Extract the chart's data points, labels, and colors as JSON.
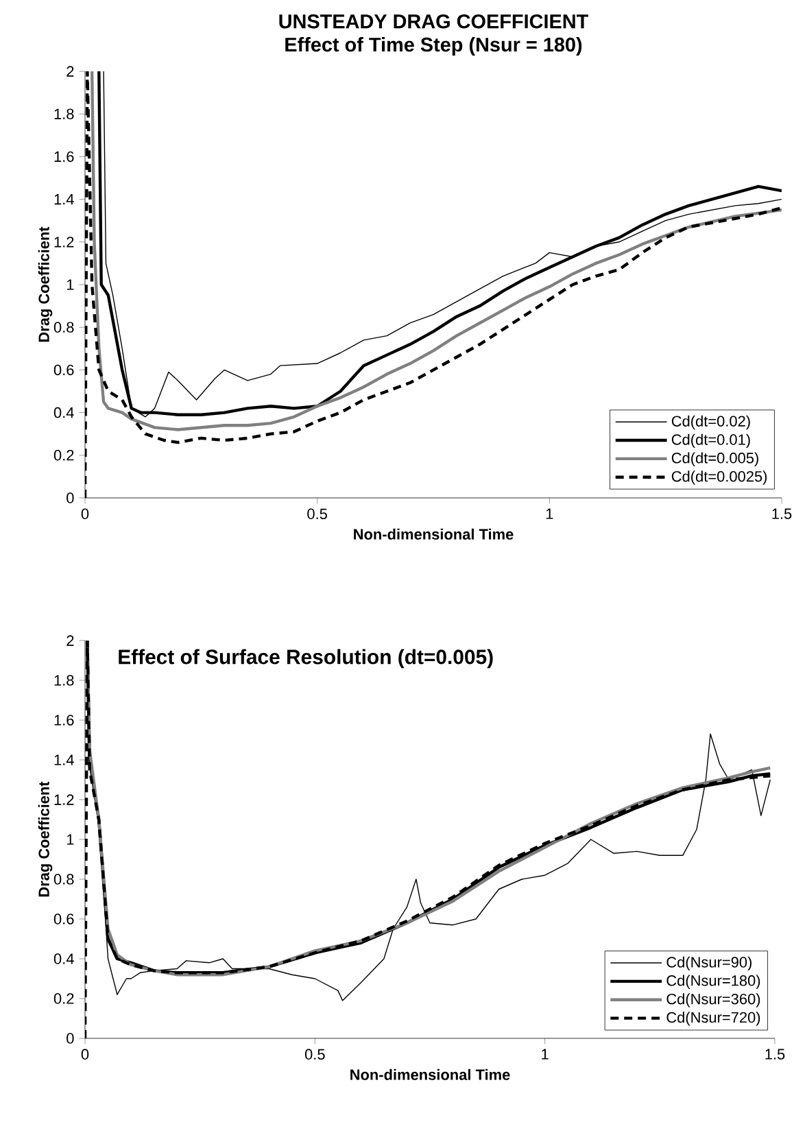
{
  "chart_data": [
    {
      "type": "line",
      "title": "UNSTEADY DRAG COEFFICIENT",
      "subtitle": "Effect of Time Step (Nsur = 180)",
      "xlabel": "Non-dimensional Time",
      "ylabel": "Drag Coefficient",
      "xlim": [
        0,
        1.5
      ],
      "ylim": [
        0,
        2
      ],
      "xticks": [
        0,
        0.5,
        1,
        1.5
      ],
      "yticks": [
        0,
        0.2,
        0.4,
        0.6,
        0.8,
        1,
        1.2,
        1.4,
        1.6,
        1.8,
        2
      ],
      "grid": false,
      "legend": "bottom right",
      "marker": "none",
      "series": [
        {
          "name": "Cd(dt=0.02)",
          "color": "#000000",
          "line_style": "solid",
          "x": [
            0.04,
            0.045,
            0.06,
            0.08,
            0.1,
            0.13,
            0.15,
            0.18,
            0.2,
            0.24,
            0.28,
            0.3,
            0.35,
            0.4,
            0.42,
            0.5,
            0.55,
            0.6,
            0.65,
            0.7,
            0.75,
            0.8,
            0.9,
            0.97,
            1.0,
            1.05,
            1.1,
            1.15,
            1.2,
            1.25,
            1.3,
            1.4,
            1.45,
            1.5
          ],
          "values": [
            2,
            1.1,
            0.95,
            0.7,
            0.42,
            0.38,
            0.42,
            0.59,
            0.55,
            0.46,
            0.56,
            0.6,
            0.55,
            0.58,
            0.62,
            0.63,
            0.68,
            0.74,
            0.76,
            0.82,
            0.86,
            0.92,
            1.04,
            1.1,
            1.15,
            1.13,
            1.18,
            1.2,
            1.25,
            1.3,
            1.33,
            1.37,
            1.38,
            1.4
          ]
        },
        {
          "name": "Cd(dt=0.01)",
          "color": "#000000",
          "line_style": "solid",
          "x": [
            0.03,
            0.035,
            0.05,
            0.08,
            0.1,
            0.12,
            0.15,
            0.2,
            0.25,
            0.3,
            0.35,
            0.4,
            0.45,
            0.5,
            0.55,
            0.6,
            0.65,
            0.7,
            0.75,
            0.8,
            0.85,
            0.9,
            0.95,
            1.0,
            1.05,
            1.1,
            1.15,
            1.2,
            1.25,
            1.3,
            1.35,
            1.4,
            1.45,
            1.5
          ],
          "values": [
            2,
            1.0,
            0.95,
            0.6,
            0.42,
            0.4,
            0.4,
            0.39,
            0.39,
            0.4,
            0.42,
            0.43,
            0.42,
            0.43,
            0.5,
            0.62,
            0.67,
            0.72,
            0.78,
            0.85,
            0.9,
            0.97,
            1.03,
            1.08,
            1.13,
            1.18,
            1.22,
            1.28,
            1.33,
            1.37,
            1.4,
            1.43,
            1.46,
            1.44
          ]
        },
        {
          "name": "Cd(dt=0.005)",
          "color": "#808080",
          "line_style": "solid",
          "x": [
            0.015,
            0.02,
            0.03,
            0.04,
            0.05,
            0.08,
            0.1,
            0.15,
            0.2,
            0.25,
            0.3,
            0.35,
            0.4,
            0.45,
            0.5,
            0.55,
            0.6,
            0.65,
            0.7,
            0.75,
            0.8,
            0.85,
            0.9,
            0.95,
            1.0,
            1.05,
            1.1,
            1.15,
            1.2,
            1.25,
            1.3,
            1.4,
            1.5
          ],
          "values": [
            2,
            1.2,
            0.7,
            0.45,
            0.42,
            0.4,
            0.37,
            0.33,
            0.32,
            0.33,
            0.34,
            0.34,
            0.35,
            0.38,
            0.43,
            0.47,
            0.52,
            0.58,
            0.63,
            0.69,
            0.76,
            0.82,
            0.88,
            0.94,
            0.99,
            1.05,
            1.1,
            1.14,
            1.19,
            1.23,
            1.27,
            1.32,
            1.35
          ]
        },
        {
          "name": "Cd(dt=0.0025)",
          "color": "#000000",
          "line_style": "dashed",
          "x": [
            0,
            0.005,
            0.015,
            0.03,
            0.05,
            0.08,
            0.1,
            0.13,
            0.17,
            0.2,
            0.25,
            0.3,
            0.35,
            0.4,
            0.45,
            0.5,
            0.55,
            0.6,
            0.65,
            0.7,
            0.75,
            0.8,
            0.85,
            0.9,
            0.95,
            1.0,
            1.05,
            1.1,
            1.15,
            1.2,
            1.25,
            1.3,
            1.35,
            1.4,
            1.45,
            1.5
          ],
          "values": [
            0,
            2,
            1.0,
            0.6,
            0.5,
            0.46,
            0.38,
            0.3,
            0.27,
            0.26,
            0.28,
            0.27,
            0.28,
            0.3,
            0.31,
            0.36,
            0.4,
            0.46,
            0.5,
            0.54,
            0.6,
            0.66,
            0.72,
            0.79,
            0.86,
            0.93,
            1.0,
            1.04,
            1.07,
            1.15,
            1.22,
            1.27,
            1.29,
            1.31,
            1.33,
            1.36
          ]
        }
      ]
    },
    {
      "type": "line",
      "title": "Effect of Surface Resolution (dt=0.005)",
      "xlabel": "Non-dimensional Time",
      "ylabel": "Drag Coefficient",
      "xlim": [
        0,
        1.5
      ],
      "ylim": [
        0,
        2
      ],
      "xticks": [
        0,
        0.5,
        1,
        1.5
      ],
      "yticks": [
        0,
        0.2,
        0.4,
        0.6,
        0.8,
        1,
        1.2,
        1.4,
        1.6,
        1.8,
        2
      ],
      "grid": false,
      "legend": "bottom right",
      "marker": "none",
      "series": [
        {
          "name": "Cd(Nsur=90)",
          "color": "#000000",
          "line_style": "solid",
          "x": [
            0.01,
            0.03,
            0.05,
            0.07,
            0.09,
            0.1,
            0.12,
            0.15,
            0.2,
            0.22,
            0.27,
            0.3,
            0.32,
            0.35,
            0.4,
            0.45,
            0.5,
            0.55,
            0.56,
            0.6,
            0.65,
            0.67,
            0.7,
            0.72,
            0.73,
            0.75,
            0.8,
            0.85,
            0.9,
            0.95,
            1.0,
            1.05,
            1.1,
            1.15,
            1.2,
            1.25,
            1.3,
            1.33,
            1.35,
            1.36,
            1.38,
            1.4,
            1.45,
            1.47,
            1.49
          ],
          "values": [
            1.4,
            1.1,
            0.4,
            0.22,
            0.3,
            0.3,
            0.33,
            0.34,
            0.35,
            0.39,
            0.38,
            0.4,
            0.35,
            0.35,
            0.35,
            0.32,
            0.3,
            0.24,
            0.19,
            0.28,
            0.4,
            0.55,
            0.66,
            0.8,
            0.68,
            0.58,
            0.57,
            0.6,
            0.75,
            0.8,
            0.82,
            0.88,
            1.0,
            0.93,
            0.94,
            0.92,
            0.92,
            1.05,
            1.3,
            1.53,
            1.38,
            1.3,
            1.35,
            1.12,
            1.3
          ]
        },
        {
          "name": "Cd(Nsur=180)",
          "color": "#000000",
          "line_style": "solid",
          "x": [
            0.005,
            0.01,
            0.03,
            0.05,
            0.07,
            0.1,
            0.15,
            0.2,
            0.3,
            0.4,
            0.5,
            0.6,
            0.7,
            0.8,
            0.9,
            1.0,
            1.1,
            1.2,
            1.3,
            1.4,
            1.45,
            1.49
          ],
          "values": [
            2,
            1.4,
            1.1,
            0.5,
            0.4,
            0.38,
            0.34,
            0.33,
            0.33,
            0.36,
            0.43,
            0.48,
            0.58,
            0.7,
            0.86,
            0.97,
            1.06,
            1.16,
            1.25,
            1.29,
            1.32,
            1.33
          ]
        },
        {
          "name": "Cd(Nsur=360)",
          "color": "#808080",
          "line_style": "solid",
          "x": [
            0.005,
            0.01,
            0.03,
            0.05,
            0.07,
            0.1,
            0.15,
            0.2,
            0.3,
            0.4,
            0.5,
            0.6,
            0.7,
            0.8,
            0.9,
            1.0,
            1.1,
            1.2,
            1.3,
            1.4,
            1.45,
            1.49
          ],
          "values": [
            2,
            1.45,
            1.1,
            0.55,
            0.42,
            0.37,
            0.34,
            0.32,
            0.32,
            0.36,
            0.44,
            0.49,
            0.58,
            0.69,
            0.84,
            0.96,
            1.08,
            1.18,
            1.26,
            1.31,
            1.34,
            1.36
          ]
        },
        {
          "name": "Cd(Nsur=720)",
          "color": "#000000",
          "line_style": "dashed",
          "x": [
            0,
            0.005,
            0.01,
            0.03,
            0.05,
            0.07,
            0.1,
            0.15,
            0.2,
            0.3,
            0.4,
            0.5,
            0.6,
            0.7,
            0.8,
            0.9,
            1.0,
            1.1,
            1.2,
            1.3,
            1.4,
            1.49
          ],
          "values": [
            0,
            2,
            1.35,
            1.1,
            0.5,
            0.4,
            0.37,
            0.34,
            0.33,
            0.33,
            0.36,
            0.43,
            0.49,
            0.59,
            0.71,
            0.87,
            0.98,
            1.07,
            1.17,
            1.25,
            1.3,
            1.32
          ]
        }
      ]
    }
  ]
}
